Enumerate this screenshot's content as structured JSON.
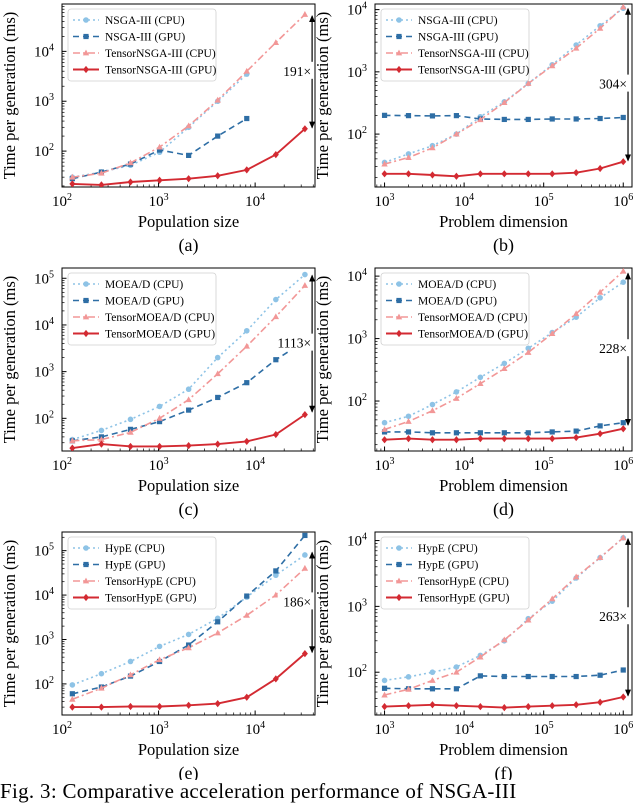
{
  "figure_caption": "Fig. 3: Comparative acceleration performance of NSGA-III",
  "colors": {
    "cpu_baseline": "#8ec3e6",
    "gpu_baseline": "#2e6ea5",
    "tensor_cpu": "#f29797",
    "tensor_gpu": "#d32a32",
    "text": "#000000"
  },
  "chart_data": [
    {
      "id": "a",
      "type": "line",
      "panel_label": "(a)",
      "xlabel": "Population size",
      "ylabel": "Time per generation (ms)",
      "xscale": "log",
      "yscale": "log",
      "xlim_log10": [
        2.0,
        4.62
      ],
      "ylim_log10": [
        1.28,
        4.95
      ],
      "xticks": [
        2,
        3,
        4
      ],
      "xtick_labels": [
        "10",
        "10",
        "10"
      ],
      "xtick_exps": [
        "2",
        "3",
        "4"
      ],
      "yticks": [
        2,
        3,
        4
      ],
      "ytick_labels": [
        "10",
        "10",
        "10"
      ],
      "ytick_exps": [
        "2",
        "3",
        "4"
      ],
      "legend_position": "upper-left",
      "annotation": {
        "text": "191×",
        "x_log10": 4.59,
        "y_from_log10": 2.45,
        "y_to_log10": 4.73
      },
      "series": [
        {
          "name": "NSGA-III (CPU)",
          "style": "cpu_baseline",
          "x": [
            128,
            256,
            512,
            1024,
            2048,
            4096,
            8192
          ],
          "y": [
            30,
            38,
            52,
            95,
            300,
            1000,
            3500
          ]
        },
        {
          "name": "NSGA-III (GPU)",
          "style": "gpu_baseline",
          "x": [
            128,
            256,
            512,
            1024,
            2048,
            4096,
            8192
          ],
          "y": [
            28,
            38,
            55,
            105,
            82,
            200,
            450
          ]
        },
        {
          "name": "TensorNSGA-III (CPU)",
          "style": "tensor_cpu",
          "x": [
            128,
            256,
            512,
            1024,
            2048,
            4096,
            8192,
            16384,
            32768
          ],
          "y": [
            30,
            36,
            58,
            120,
            320,
            1050,
            4000,
            15000,
            55000
          ]
        },
        {
          "name": "TensorNSGA-III (GPU)",
          "style": "tensor_gpu",
          "x": [
            128,
            256,
            512,
            1024,
            2048,
            4096,
            8192,
            16384,
            32768
          ],
          "y": [
            22,
            21,
            24,
            26,
            28,
            32,
            42,
            85,
            280
          ]
        }
      ]
    },
    {
      "id": "b",
      "type": "line",
      "panel_label": "(b)",
      "xlabel": "Problem dimension",
      "ylabel": "Time per generation (ms)",
      "xscale": "log",
      "yscale": "log",
      "xlim_log10": [
        2.88,
        6.11
      ],
      "ylim_log10": [
        1.15,
        4.09
      ],
      "xticks": [
        3,
        4,
        5,
        6
      ],
      "xtick_labels": [
        "10",
        "10",
        "10",
        "10"
      ],
      "xtick_exps": [
        "3",
        "4",
        "5",
        "6"
      ],
      "yticks": [
        2,
        3,
        4
      ],
      "ytick_labels": [
        "10",
        "10",
        "10"
      ],
      "ytick_exps": [
        "2",
        "3",
        "4"
      ],
      "legend_position": "upper-left",
      "annotation": {
        "text": "304×",
        "x_log10": 6.06,
        "y_from_log10": 1.56,
        "y_to_log10": 4.03
      },
      "series": [
        {
          "name": "NSGA-III (CPU)",
          "style": "cpu_baseline",
          "x": [
            1000,
            2000,
            4000,
            8000,
            16000,
            32000,
            64000,
            128000,
            256000,
            512000,
            1000000
          ],
          "y": [
            35,
            48,
            65,
            100,
            190,
            330,
            650,
            1300,
            2700,
            5500,
            10500
          ]
        },
        {
          "name": "NSGA-III (GPU)",
          "style": "gpu_baseline",
          "x": [
            1000,
            2000,
            4000,
            8000,
            16000,
            32000,
            64000,
            128000,
            256000,
            512000,
            1000000
          ],
          "y": [
            200,
            198,
            196,
            198,
            175,
            172,
            172,
            175,
            175,
            178,
            185
          ]
        },
        {
          "name": "TensorNSGA-III (CPU)",
          "style": "tensor_cpu",
          "x": [
            1000,
            2000,
            4000,
            8000,
            16000,
            32000,
            64000,
            128000,
            256000,
            512000,
            1000000
          ],
          "y": [
            33,
            42,
            60,
            100,
            170,
            320,
            650,
            1250,
            2400,
            5000,
            11000
          ]
        },
        {
          "name": "TensorNSGA-III (GPU)",
          "style": "tensor_gpu",
          "x": [
            1000,
            2000,
            4000,
            8000,
            16000,
            32000,
            64000,
            128000,
            256000,
            512000,
            1000000
          ],
          "y": [
            23,
            23,
            22,
            21,
            23,
            23,
            23,
            23,
            24,
            28,
            36
          ]
        }
      ]
    },
    {
      "id": "c",
      "type": "line",
      "panel_label": "(c)",
      "xlabel": "Population size",
      "ylabel": "Time per generation (ms)",
      "xscale": "log",
      "yscale": "log",
      "xlim_log10": [
        2.0,
        4.62
      ],
      "ylim_log10": [
        1.3,
        5.22
      ],
      "xticks": [
        2,
        3,
        4
      ],
      "xtick_labels": [
        "10",
        "10",
        "10"
      ],
      "xtick_exps": [
        "2",
        "3",
        "4"
      ],
      "yticks": [
        2,
        3,
        4,
        5
      ],
      "ytick_labels": [
        "10",
        "10",
        "10",
        "10"
      ],
      "ytick_exps": [
        "2",
        "3",
        "4",
        "5"
      ],
      "legend_position": "upper-left",
      "annotation": {
        "text": "1113×",
        "x_log10": 4.59,
        "y_from_log10": 2.12,
        "y_to_log10": 5.08
      },
      "series": [
        {
          "name": "MOEA/D (CPU)",
          "style": "cpu_baseline",
          "x": [
            128,
            256,
            512,
            1024,
            2048,
            4096,
            8192,
            16384,
            32768
          ],
          "y": [
            35,
            55,
            95,
            180,
            420,
            2000,
            7500,
            35000,
            120000
          ]
        },
        {
          "name": "MOEA/D (GPU)",
          "style": "gpu_baseline",
          "x": [
            128,
            256,
            512,
            1024,
            2048,
            4096,
            8192,
            16384,
            32768
          ],
          "y": [
            33,
            40,
            58,
            85,
            150,
            280,
            580,
            1800,
            4500
          ]
        },
        {
          "name": "TensorMOEA/D (CPU)",
          "style": "tensor_cpu",
          "x": [
            128,
            256,
            512,
            1024,
            2048,
            4096,
            8192,
            16384,
            32768
          ],
          "y": [
            33,
            35,
            50,
            100,
            250,
            900,
            3500,
            15000,
            70000
          ]
        },
        {
          "name": "TensorMOEA/D (GPU)",
          "style": "tensor_gpu",
          "x": [
            128,
            256,
            512,
            1024,
            2048,
            4096,
            8192,
            16384,
            32768
          ],
          "y": [
            23,
            28,
            25,
            25,
            26,
            28,
            32,
            45,
            120
          ]
        }
      ]
    },
    {
      "id": "d",
      "type": "line",
      "panel_label": "(d)",
      "xlabel": "Problem dimension",
      "ylabel": "Time per generation (ms)",
      "xscale": "log",
      "yscale": "log",
      "xlim_log10": [
        2.88,
        6.11
      ],
      "ylim_log10": [
        1.2,
        4.13
      ],
      "xticks": [
        3,
        4,
        5,
        6
      ],
      "xtick_labels": [
        "10",
        "10",
        "10",
        "10"
      ],
      "xtick_exps": [
        "3",
        "4",
        "5",
        "6"
      ],
      "yticks": [
        2,
        3,
        4
      ],
      "ytick_labels": [
        "10",
        "10",
        "10"
      ],
      "ytick_exps": [
        "2",
        "3",
        "4"
      ],
      "legend_position": "upper-left",
      "annotation": {
        "text": "228×",
        "x_log10": 6.06,
        "y_from_log10": 1.6,
        "y_to_log10": 4.06
      },
      "series": [
        {
          "name": "MOEA/D (CPU)",
          "style": "cpu_baseline",
          "x": [
            1000,
            2000,
            4000,
            8000,
            16000,
            32000,
            64000,
            128000,
            256000,
            512000,
            1000000
          ],
          "y": [
            45,
            57,
            88,
            140,
            240,
            400,
            700,
            1250,
            2200,
            4500,
            8000
          ]
        },
        {
          "name": "MOEA/D (GPU)",
          "style": "gpu_baseline",
          "x": [
            1000,
            2000,
            4000,
            8000,
            16000,
            32000,
            64000,
            128000,
            256000,
            512000,
            1000000
          ],
          "y": [
            32,
            32,
            31,
            31,
            31,
            31,
            31,
            32,
            33,
            40,
            45
          ]
        },
        {
          "name": "TensorMOEA/D (CPU)",
          "style": "tensor_cpu",
          "x": [
            1000,
            2000,
            4000,
            8000,
            16000,
            32000,
            64000,
            128000,
            256000,
            512000,
            1000000
          ],
          "y": [
            35,
            47,
            70,
            110,
            190,
            330,
            600,
            1200,
            2500,
            5500,
            12000
          ]
        },
        {
          "name": "TensorMOEA/D (GPU)",
          "style": "tensor_gpu",
          "x": [
            1000,
            2000,
            4000,
            8000,
            16000,
            32000,
            64000,
            128000,
            256000,
            512000,
            1000000
          ],
          "y": [
            24,
            25,
            24,
            24,
            25,
            25,
            25,
            25,
            26,
            30,
            36
          ]
        }
      ]
    },
    {
      "id": "e",
      "type": "line",
      "panel_label": "(e)",
      "xlabel": "Population size",
      "ylabel": "Time per generation (ms)",
      "xscale": "log",
      "yscale": "log",
      "xlim_log10": [
        2.0,
        4.62
      ],
      "ylim_log10": [
        1.3,
        5.42
      ],
      "xticks": [
        2,
        3,
        4
      ],
      "xtick_labels": [
        "10",
        "10",
        "10"
      ],
      "xtick_exps": [
        "2",
        "3",
        "4"
      ],
      "yticks": [
        2,
        3,
        4,
        5
      ],
      "ytick_labels": [
        "10",
        "10",
        "10",
        "10"
      ],
      "ytick_exps": [
        "2",
        "3",
        "4",
        "5"
      ],
      "legend_position": "upper-left",
      "annotation": {
        "text": "186×",
        "x_log10": 4.59,
        "y_from_log10": 2.69,
        "y_to_log10": 4.98
      },
      "series": [
        {
          "name": "HypE (CPU)",
          "style": "cpu_baseline",
          "x": [
            128,
            256,
            512,
            1024,
            2048,
            4096,
            8192,
            16384,
            32768
          ],
          "y": [
            95,
            170,
            320,
            700,
            1300,
            3000,
            9000,
            28000,
            80000
          ]
        },
        {
          "name": "HypE (GPU)",
          "style": "gpu_baseline",
          "x": [
            128,
            256,
            512,
            1024,
            2048,
            4096,
            8192,
            16384,
            32768
          ],
          "y": [
            60,
            85,
            150,
            320,
            750,
            2500,
            9500,
            35000,
            220000
          ]
        },
        {
          "name": "TensorHypE (CPU)",
          "style": "tensor_cpu",
          "x": [
            128,
            256,
            512,
            1024,
            2048,
            4096,
            8192,
            16384,
            32768
          ],
          "y": [
            45,
            80,
            160,
            350,
            650,
            1400,
            3500,
            10000,
            40000
          ]
        },
        {
          "name": "TensorHypE (GPU)",
          "style": "tensor_gpu",
          "x": [
            128,
            256,
            512,
            1024,
            2048,
            4096,
            8192,
            16384,
            32768
          ],
          "y": [
            30,
            30,
            31,
            31,
            33,
            36,
            50,
            130,
            480
          ]
        }
      ]
    },
    {
      "id": "f",
      "type": "line",
      "panel_label": "(f)",
      "xlabel": "Problem dimension",
      "ylabel": "Time per generation (ms)",
      "xscale": "log",
      "yscale": "log",
      "xlim_log10": [
        2.88,
        6.11
      ],
      "ylim_log10": [
        1.35,
        4.13
      ],
      "xticks": [
        3,
        4,
        5,
        6
      ],
      "xtick_labels": [
        "10",
        "10",
        "10",
        "10"
      ],
      "xtick_exps": [
        "3",
        "4",
        "5",
        "6"
      ],
      "yticks": [
        2,
        3,
        4
      ],
      "ytick_labels": [
        "10",
        "10",
        "10"
      ],
      "ytick_exps": [
        "2",
        "3",
        "4"
      ],
      "legend_position": "upper-left",
      "annotation": {
        "text": "263×",
        "x_log10": 6.06,
        "y_from_log10": 1.63,
        "y_to_log10": 4.04
      },
      "series": [
        {
          "name": "HypE (CPU)",
          "style": "cpu_baseline",
          "x": [
            1000,
            2000,
            4000,
            8000,
            16000,
            32000,
            64000,
            128000,
            256000,
            512000,
            1000000
          ],
          "y": [
            75,
            85,
            100,
            120,
            180,
            300,
            650,
            1200,
            2700,
            5500,
            11000
          ]
        },
        {
          "name": "HypE (GPU)",
          "style": "gpu_baseline",
          "x": [
            1000,
            2000,
            4000,
            8000,
            16000,
            32000,
            64000,
            128000,
            256000,
            512000,
            1000000
          ],
          "y": [
            57,
            56,
            56,
            56,
            88,
            86,
            86,
            86,
            86,
            90,
            108
          ]
        },
        {
          "name": "TensorHypE (CPU)",
          "style": "tensor_cpu",
          "x": [
            1000,
            2000,
            4000,
            8000,
            16000,
            32000,
            64000,
            128000,
            256000,
            512000,
            1000000
          ],
          "y": [
            45,
            55,
            75,
            100,
            170,
            310,
            620,
            1300,
            2800,
            5500,
            11000
          ]
        },
        {
          "name": "TensorHypE (GPU)",
          "style": "tensor_gpu",
          "x": [
            1000,
            2000,
            4000,
            8000,
            16000,
            32000,
            64000,
            128000,
            256000,
            512000,
            1000000
          ],
          "y": [
            30,
            31,
            32,
            31,
            30,
            29,
            30,
            31,
            32,
            35,
            42
          ]
        }
      ]
    }
  ]
}
